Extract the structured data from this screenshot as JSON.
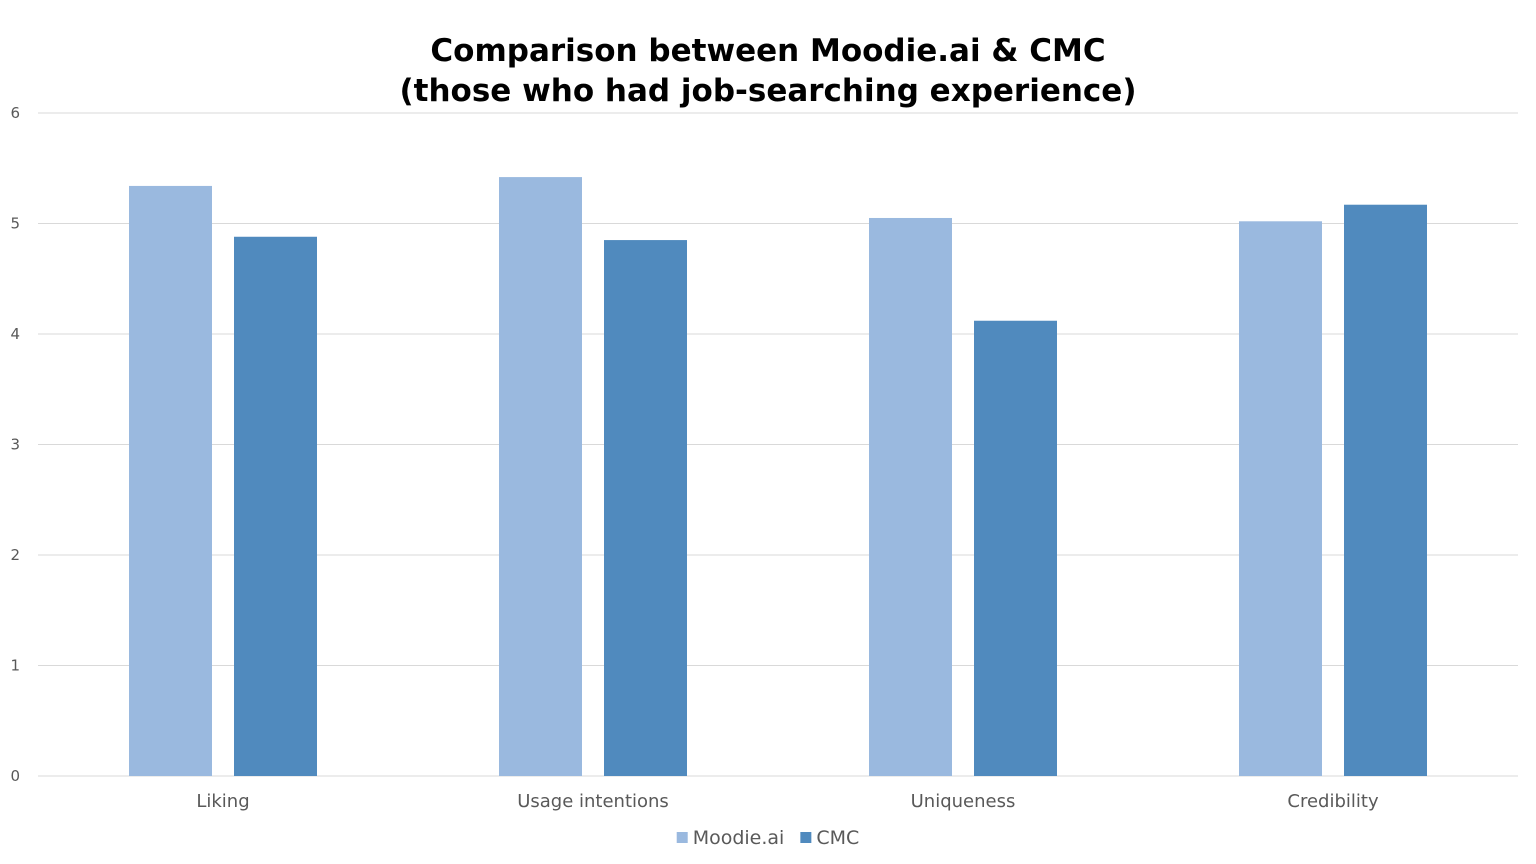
{
  "chart_data": {
    "type": "bar",
    "title_lines": [
      "Comparison between Moodie.ai & CMC",
      "(those who had job-searching experience)"
    ],
    "categories": [
      "Liking",
      "Usage intentions",
      "Uniqueness",
      "Credibility"
    ],
    "series": [
      {
        "name": "Moodie.ai",
        "color": "#9ab9df",
        "values": [
          5.34,
          5.42,
          5.05,
          5.02
        ]
      },
      {
        "name": "CMC",
        "color": "#508abe",
        "values": [
          4.88,
          4.85,
          4.12,
          5.17
        ]
      }
    ],
    "xlabel": "",
    "ylabel": "",
    "ylim": [
      0,
      6
    ],
    "yticks": [
      "0",
      "1",
      "2",
      "3",
      "4",
      "5",
      "6"
    ],
    "grid": true,
    "legend_position": "bottom"
  }
}
